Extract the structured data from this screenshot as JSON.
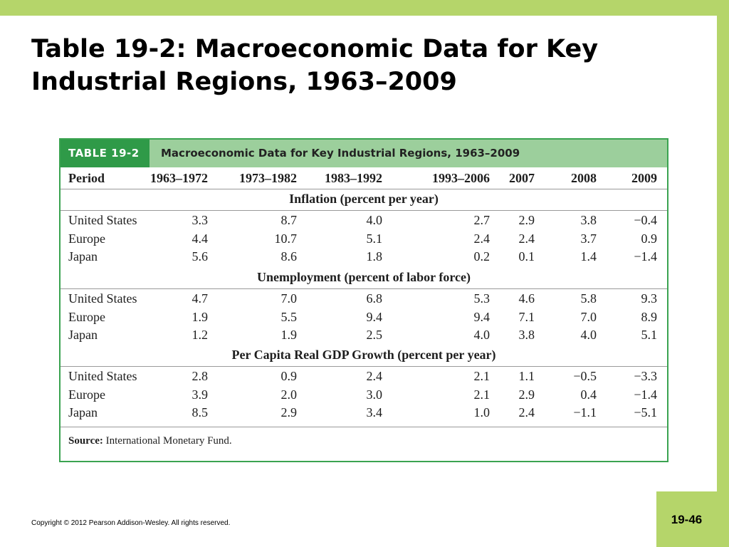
{
  "slide": {
    "title": "Table 19-2: Macroeconomic Data for Key Industrial Regions, 1963–2009",
    "copyright": "Copyright © 2012 Pearson Addison-Wesley. All rights reserved.",
    "page_number": "19-46"
  },
  "table": {
    "tag": "TABLE 19-2",
    "caption": "Macroeconomic Data for Key Industrial Regions, 1963–2009",
    "columns": [
      "Period",
      "1963–1972",
      "1973–1982",
      "1983–1992",
      "1993–2006",
      "2007",
      "2008",
      "2009"
    ],
    "sections": [
      {
        "title": "Inflation (percent per year)",
        "rows": [
          {
            "region": "United States",
            "values": [
              "3.3",
              "8.7",
              "4.0",
              "2.7",
              "2.9",
              "3.8",
              "−0.4"
            ]
          },
          {
            "region": "Europe",
            "values": [
              "4.4",
              "10.7",
              "5.1",
              "2.4",
              "2.4",
              "3.7",
              "0.9"
            ]
          },
          {
            "region": "Japan",
            "values": [
              "5.6",
              "8.6",
              "1.8",
              "0.2",
              "0.1",
              "1.4",
              "−1.4"
            ]
          }
        ]
      },
      {
        "title": "Unemployment (percent of labor force)",
        "rows": [
          {
            "region": "United States",
            "values": [
              "4.7",
              "7.0",
              "6.8",
              "5.3",
              "4.6",
              "5.8",
              "9.3"
            ]
          },
          {
            "region": "Europe",
            "values": [
              "1.9",
              "5.5",
              "9.4",
              "9.4",
              "7.1",
              "7.0",
              "8.9"
            ]
          },
          {
            "region": "Japan",
            "values": [
              "1.2",
              "1.9",
              "2.5",
              "4.0",
              "3.8",
              "4.0",
              "5.1"
            ]
          }
        ]
      },
      {
        "title": "Per Capita Real GDP Growth (percent per year)",
        "rows": [
          {
            "region": "United States",
            "values": [
              "2.8",
              "0.9",
              "2.4",
              "2.1",
              "1.1",
              "−0.5",
              "−3.3"
            ]
          },
          {
            "region": "Europe",
            "values": [
              "3.9",
              "2.0",
              "3.0",
              "2.1",
              "2.9",
              "0.4",
              "−1.4"
            ]
          },
          {
            "region": "Japan",
            "values": [
              "8.5",
              "2.9",
              "3.4",
              "1.0",
              "2.4",
              "−1.1",
              "−5.1"
            ]
          }
        ]
      }
    ],
    "source_label": "Source:",
    "source_text": "International Monetary Fund."
  }
}
